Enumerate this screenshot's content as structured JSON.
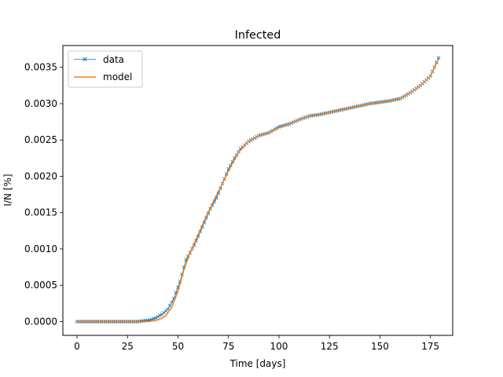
{
  "chart_data": {
    "type": "line",
    "title": "Infected",
    "xlabel": "Time [days]",
    "ylabel": "I/N [%]",
    "xlim": [
      -7,
      186
    ],
    "ylim": [
      -0.00019,
      0.0038
    ],
    "xticks": [
      0,
      25,
      50,
      75,
      100,
      125,
      150,
      175
    ],
    "xtick_labels": [
      "0",
      "25",
      "50",
      "75",
      "100",
      "125",
      "150",
      "175"
    ],
    "yticks": [
      0,
      0.0005,
      0.001,
      0.0015,
      0.002,
      0.0025,
      0.003,
      0.0035
    ],
    "ytick_labels": [
      "0.0000",
      "0.0005",
      "0.0010",
      "0.0015",
      "0.0020",
      "0.0025",
      "0.0030",
      "0.0035"
    ],
    "grid": false,
    "legend_position": "top-left",
    "series": [
      {
        "name": "data",
        "color": "#1f77b4",
        "style": "line-with-x-markers",
        "anchors": [
          [
            0,
            0
          ],
          [
            30,
            0
          ],
          [
            33,
            1e-05
          ],
          [
            36,
            2e-05
          ],
          [
            39,
            5e-05
          ],
          [
            42,
            0.0001
          ],
          [
            45,
            0.00017
          ],
          [
            48,
            0.00032
          ],
          [
            51,
            0.00055
          ],
          [
            54,
            0.00085
          ],
          [
            58,
            0.00105
          ],
          [
            62,
            0.0013
          ],
          [
            66,
            0.00155
          ],
          [
            69,
            0.0017
          ],
          [
            72,
            0.0019
          ],
          [
            75,
            0.0021
          ],
          [
            78,
            0.00225
          ],
          [
            81,
            0.00238
          ],
          [
            85,
            0.00248
          ],
          [
            90,
            0.00256
          ],
          [
            95,
            0.0026
          ],
          [
            100,
            0.00268
          ],
          [
            105,
            0.00272
          ],
          [
            110,
            0.00278
          ],
          [
            115,
            0.00283
          ],
          [
            120,
            0.00285
          ],
          [
            125,
            0.00288
          ],
          [
            130,
            0.00291
          ],
          [
            135,
            0.00294
          ],
          [
            140,
            0.00297
          ],
          [
            145,
            0.003
          ],
          [
            150,
            0.00302
          ],
          [
            155,
            0.00304
          ],
          [
            160,
            0.00307
          ],
          [
            165,
            0.00315
          ],
          [
            170,
            0.00325
          ],
          [
            175,
            0.00338
          ],
          [
            179,
            0.00363
          ]
        ]
      },
      {
        "name": "model",
        "color": "#ff7f0e",
        "style": "line",
        "anchors": [
          [
            0,
            0
          ],
          [
            35,
            0
          ],
          [
            38,
            1e-05
          ],
          [
            41,
            3e-05
          ],
          [
            44,
            8e-05
          ],
          [
            47,
            0.0002
          ],
          [
            50,
            0.00042
          ],
          [
            53,
            0.00072
          ],
          [
            56,
            0.00095
          ],
          [
            60,
            0.0012
          ],
          [
            64,
            0.00145
          ],
          [
            68,
            0.00168
          ],
          [
            72,
            0.0019
          ],
          [
            76,
            0.00213
          ],
          [
            80,
            0.00233
          ],
          [
            84,
            0.00246
          ],
          [
            90,
            0.00256
          ],
          [
            95,
            0.0026
          ],
          [
            100,
            0.00267
          ],
          [
            105,
            0.00272
          ],
          [
            110,
            0.00278
          ],
          [
            115,
            0.00283
          ],
          [
            120,
            0.00285
          ],
          [
            125,
            0.00288
          ],
          [
            130,
            0.00291
          ],
          [
            135,
            0.00294
          ],
          [
            140,
            0.00297
          ],
          [
            145,
            0.003
          ],
          [
            150,
            0.00302
          ],
          [
            155,
            0.00304
          ],
          [
            160,
            0.00307
          ],
          [
            165,
            0.00315
          ],
          [
            170,
            0.00325
          ],
          [
            175,
            0.00338
          ],
          [
            179,
            0.00362
          ]
        ]
      }
    ]
  }
}
